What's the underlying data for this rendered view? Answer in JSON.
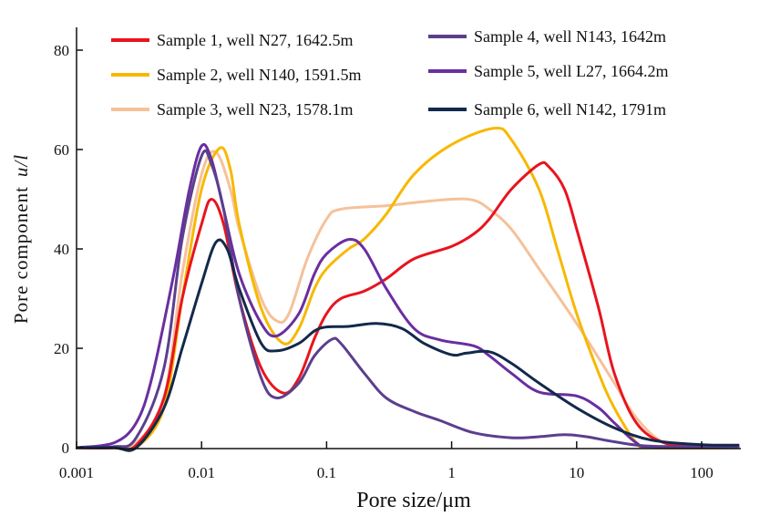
{
  "chart_data": {
    "type": "line",
    "title": "",
    "xlabel": "Pore size/μm",
    "ylabel": "Pore component",
    "ylabel_unit": "u/l",
    "x_scale": "log",
    "xlim": [
      0.001,
      200
    ],
    "ylim": [
      0,
      85
    ],
    "x_ticks": [
      0.001,
      0.01,
      0.1,
      1,
      10,
      100
    ],
    "x_tick_labels": [
      "0.001",
      "0.01",
      "0.1",
      "1",
      "10",
      "100"
    ],
    "y_ticks": [
      0,
      20,
      40,
      60,
      80
    ],
    "y_tick_labels": [
      "0",
      "20",
      "40",
      "60",
      "80"
    ],
    "grid": false,
    "legend_placement": "top",
    "series": [
      {
        "name": "Sample 1, well N27, 1642.5m",
        "color": "#e8141e",
        "x": [
          0.001,
          0.002,
          0.003,
          0.005,
          0.007,
          0.01,
          0.012,
          0.015,
          0.02,
          0.03,
          0.045,
          0.06,
          0.08,
          0.1,
          0.13,
          0.2,
          0.3,
          0.5,
          1,
          1.5,
          2,
          3,
          5,
          6,
          8,
          10,
          15,
          20,
          30,
          50,
          100,
          200
        ],
        "y": [
          0,
          0,
          0.5,
          10,
          30,
          45,
          50,
          45,
          30,
          16,
          11,
          14,
          22,
          27,
          30,
          31.5,
          34,
          38,
          40.5,
          43,
          46,
          52,
          57,
          56.5,
          52,
          44,
          28,
          15,
          5,
          1,
          0.3,
          0.3
        ]
      },
      {
        "name": "Sample 2, well N140, 1591.5m",
        "color": "#f7b800",
        "x": [
          0.001,
          0.002,
          0.003,
          0.005,
          0.007,
          0.01,
          0.014,
          0.017,
          0.02,
          0.03,
          0.045,
          0.06,
          0.08,
          0.1,
          0.15,
          0.2,
          0.3,
          0.5,
          1,
          2.2,
          3,
          5,
          7,
          10,
          15,
          20,
          30,
          40,
          200
        ],
        "y": [
          0,
          0,
          0,
          8,
          30,
          52,
          60.3,
          56,
          45,
          28,
          21,
          24,
          32,
          36,
          40,
          42,
          47,
          55,
          61,
          64.3,
          62,
          52,
          40,
          27,
          15,
          8,
          1,
          0,
          0
        ]
      },
      {
        "name": "Sample 3, well N23, 1578.1m",
        "color": "#f5c19a",
        "x": [
          0.001,
          0.002,
          0.003,
          0.005,
          0.007,
          0.01,
          0.013,
          0.017,
          0.02,
          0.03,
          0.04,
          0.05,
          0.07,
          0.1,
          0.13,
          0.3,
          0.5,
          1,
          1.5,
          2,
          3,
          5,
          10,
          20,
          30,
          50,
          100,
          200
        ],
        "y": [
          0,
          0,
          1,
          10,
          35,
          55,
          59.5,
          52,
          44,
          30,
          25.5,
          27,
          38,
          46,
          48,
          48.7,
          49.3,
          50,
          49.8,
          48,
          44,
          36,
          25,
          13,
          6,
          1,
          0,
          0
        ]
      },
      {
        "name": "Sample 4, well N143, 1642m",
        "color": "#5b3f8e",
        "x": [
          0.001,
          0.002,
          0.003,
          0.005,
          0.007,
          0.01,
          0.012,
          0.015,
          0.02,
          0.03,
          0.04,
          0.06,
          0.08,
          0.11,
          0.13,
          0.2,
          0.3,
          0.5,
          0.8,
          1.5,
          3,
          5,
          8,
          12,
          20,
          40,
          200
        ],
        "y": [
          0,
          0.2,
          2,
          16,
          42,
          58.7,
          57,
          48,
          30,
          14,
          10,
          13,
          18.5,
          21.8,
          21,
          15,
          10,
          7.3,
          5.5,
          3,
          2,
          2.2,
          2.6,
          2.2,
          1.2,
          0.3,
          0.2
        ]
      },
      {
        "name": "Sample 5, well L27, 1664.2m",
        "color": "#6a2ea0",
        "x": [
          0.001,
          0.002,
          0.003,
          0.004,
          0.006,
          0.008,
          0.01,
          0.012,
          0.015,
          0.02,
          0.03,
          0.04,
          0.06,
          0.08,
          0.1,
          0.15,
          0.2,
          0.3,
          0.5,
          0.8,
          1.5,
          2,
          3,
          5,
          10,
          15,
          20,
          30,
          40,
          200
        ],
        "y": [
          0,
          1,
          5,
          14,
          35,
          52,
          60.7,
          58,
          48,
          35,
          25,
          22.5,
          27,
          35,
          39,
          41.9,
          40,
          32,
          24,
          21.7,
          20.5,
          18.5,
          15,
          11.2,
          10.4,
          8,
          5,
          1,
          0.2,
          0.2
        ]
      },
      {
        "name": "Sample 6, well N142, 1791m",
        "color": "#13294b",
        "x": [
          0.001,
          0.002,
          0.003,
          0.005,
          0.007,
          0.01,
          0.013,
          0.016,
          0.02,
          0.03,
          0.04,
          0.06,
          0.08,
          0.1,
          0.15,
          0.25,
          0.4,
          0.6,
          1,
          1.3,
          2,
          3,
          5,
          10,
          20,
          40,
          100,
          200
        ],
        "y": [
          0,
          0,
          0,
          8,
          20,
          33,
          41.3,
          40,
          32,
          21,
          19.5,
          21,
          23.5,
          24.3,
          24.4,
          25,
          24,
          21,
          18.7,
          19,
          19.3,
          17,
          13,
          8,
          4,
          1.5,
          0.6,
          0.5
        ]
      }
    ]
  }
}
